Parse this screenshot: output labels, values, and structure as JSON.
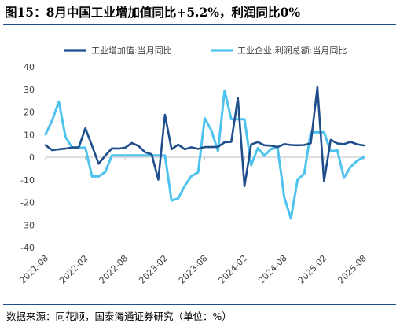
{
  "figure": {
    "title": "图15：8月中国工业增加值同比+5.2%，利润同比0%",
    "source": "数据来源：同花顺，国泰海通证券研究（单位：%）"
  },
  "colors": {
    "series1": "#1f4e8c",
    "series2": "#4ec3ee",
    "axis": "#bfbfbf",
    "tick": "#404040",
    "accent": "#1f4e8c"
  },
  "chart_data": {
    "type": "line",
    "title": "",
    "xlabel": "",
    "ylabel": "",
    "ylim": [
      -40,
      40
    ],
    "yticks": [
      40,
      30,
      20,
      10,
      0,
      -10,
      -20,
      -30,
      -40
    ],
    "xtick_labels": [
      "2021-08",
      "2022-02",
      "2022-08",
      "2023-02",
      "2023-08",
      "2024-02",
      "2024-08",
      "2025-02",
      "2025-08"
    ],
    "legend_position": "top",
    "grid": false,
    "x": [
      "2021-08",
      "2021-09",
      "2021-10",
      "2021-11",
      "2021-12",
      "2022-01",
      "2022-02",
      "2022-03",
      "2022-04",
      "2022-05",
      "2022-06",
      "2022-07",
      "2022-08",
      "2022-09",
      "2022-10",
      "2022-11",
      "2022-12",
      "2023-01",
      "2023-02",
      "2023-03",
      "2023-04",
      "2023-05",
      "2023-06",
      "2023-07",
      "2023-08",
      "2023-09",
      "2023-10",
      "2023-11",
      "2023-12",
      "2024-01",
      "2024-02",
      "2024-03",
      "2024-04",
      "2024-05",
      "2024-06",
      "2024-07",
      "2024-08",
      "2024-09",
      "2024-10",
      "2024-11",
      "2024-12",
      "2025-01",
      "2025-02",
      "2025-03",
      "2025-04",
      "2025-05",
      "2025-06",
      "2025-07",
      "2025-08"
    ],
    "series": [
      {
        "name": "工业增加值:当月同比",
        "values": [
          5.3,
          3.1,
          3.5,
          3.8,
          4.3,
          4.3,
          12.8,
          5.0,
          -2.9,
          0.7,
          3.9,
          3.8,
          4.2,
          6.3,
          5.0,
          2.2,
          1.3,
          -9.9,
          18.8,
          3.5,
          5.6,
          3.5,
          4.4,
          3.7,
          4.5,
          4.5,
          4.6,
          6.6,
          6.8,
          26.2,
          -12.8,
          5.6,
          6.7,
          5.3,
          5.1,
          4.5,
          5.8,
          5.4,
          5.3,
          5.4,
          6.2,
          31.0,
          -10.6,
          7.7,
          6.1,
          5.8,
          6.8,
          5.7,
          5.2
        ]
      },
      {
        "name": "工业企业:利润总额:当月同比",
        "values": [
          10.1,
          16.3,
          24.6,
          9.0,
          4.2,
          4.2,
          4.2,
          -8.5,
          -8.5,
          -6.5,
          0.8,
          0.8,
          0.8,
          0.8,
          0.8,
          0.8,
          0.8,
          0.8,
          0.8,
          -19.2,
          -18.2,
          -12.6,
          -8.3,
          -6.7,
          17.2,
          11.9,
          2.7,
          29.5,
          16.8,
          16.8,
          16.8,
          -3.5,
          4.0,
          0.7,
          3.6,
          4.1,
          -17.8,
          -27.1,
          -10.0,
          -7.3,
          11.0,
          11.0,
          11.0,
          2.6,
          3.0,
          -9.1,
          -4.3,
          -1.5,
          0.0
        ]
      }
    ]
  }
}
